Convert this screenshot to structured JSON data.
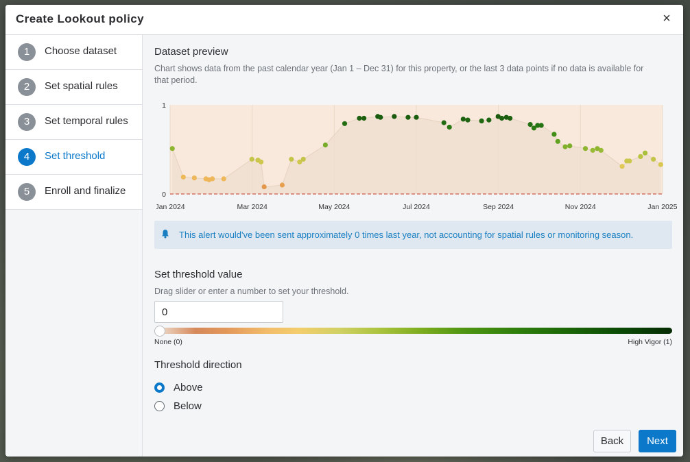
{
  "modal": {
    "title": "Create Lookout policy",
    "close_glyph": "×"
  },
  "steps": [
    {
      "num": "1",
      "label": "Choose dataset"
    },
    {
      "num": "2",
      "label": "Set spatial rules"
    },
    {
      "num": "3",
      "label": "Set temporal rules"
    },
    {
      "num": "4",
      "label": "Set threshold",
      "active": true
    },
    {
      "num": "5",
      "label": "Enroll and finalize"
    }
  ],
  "preview": {
    "title": "Dataset preview",
    "description_line1": "Chart shows data from the past calendar year (Jan 1 – Dec 31) for this property, or the last 3 data points if no data is available for",
    "description_line2": "that period."
  },
  "chart_data": {
    "type": "scatter",
    "y_ticks": [
      "0",
      "1"
    ],
    "ylim": [
      0,
      1
    ],
    "x_ticks": [
      "Jan 2024",
      "Mar 2024",
      "May 2024",
      "Jul 2024",
      "Sep 2024",
      "Nov 2024",
      "Jan 2025"
    ],
    "x_tick_months": [
      0,
      2,
      4,
      6,
      8,
      10,
      12
    ],
    "threshold": 0,
    "points": [
      [
        0.12,
        0.51
      ],
      [
        0.72,
        0.19
      ],
      [
        1.32,
        0.18
      ],
      [
        1.95,
        0.17
      ],
      [
        2.12,
        0.16
      ],
      [
        2.3,
        0.17
      ],
      [
        2.92,
        0.17
      ],
      [
        4.45,
        0.39
      ],
      [
        4.78,
        0.38
      ],
      [
        4.95,
        0.36
      ],
      [
        5.12,
        0.08
      ],
      [
        6.1,
        0.1
      ],
      [
        6.6,
        0.39
      ],
      [
        7.05,
        0.36
      ],
      [
        7.25,
        0.39
      ],
      [
        8.45,
        0.55
      ],
      [
        9.5,
        0.79
      ],
      [
        10.3,
        0.85
      ],
      [
        10.55,
        0.85
      ],
      [
        11.3,
        0.87
      ],
      [
        11.45,
        0.86
      ],
      [
        12.2,
        0.87
      ],
      [
        12.95,
        0.86
      ],
      [
        13.4,
        0.86
      ],
      [
        14.9,
        0.8
      ],
      [
        15.2,
        0.75
      ],
      [
        15.95,
        0.84
      ],
      [
        16.2,
        0.83
      ],
      [
        16.95,
        0.82
      ],
      [
        17.35,
        0.83
      ],
      [
        17.85,
        0.87
      ],
      [
        18.05,
        0.85
      ],
      [
        18.3,
        0.86
      ],
      [
        18.5,
        0.85
      ],
      [
        19.6,
        0.78
      ],
      [
        19.8,
        0.74
      ],
      [
        20.0,
        0.77
      ],
      [
        20.2,
        0.77
      ],
      [
        20.9,
        0.67
      ],
      [
        21.1,
        0.59
      ],
      [
        21.5,
        0.53
      ],
      [
        21.75,
        0.54
      ],
      [
        22.6,
        0.51
      ],
      [
        23.0,
        0.49
      ],
      [
        23.25,
        0.51
      ],
      [
        23.45,
        0.49
      ],
      [
        24.6,
        0.31
      ],
      [
        24.85,
        0.37
      ],
      [
        25.0,
        0.37
      ],
      [
        25.6,
        0.42
      ],
      [
        25.85,
        0.46
      ],
      [
        26.3,
        0.39
      ],
      [
        26.7,
        0.33
      ]
    ]
  },
  "alert": {
    "text": "This alert would've been sent approximately 0 times last year, not accounting for spatial rules or monitoring season."
  },
  "threshold": {
    "title": "Set threshold value",
    "help": "Drag slider or enter a number to set your threshold.",
    "value": "0",
    "slider_value": 0,
    "min_label": "None (0)",
    "max_label": "High Vigor (1)"
  },
  "direction": {
    "title": "Threshold direction",
    "options": [
      {
        "label": "Above",
        "checked": true
      },
      {
        "label": "Below",
        "checked": false
      }
    ]
  },
  "footer": {
    "back_label": "Back",
    "next_label": "Next"
  },
  "colors": {
    "accent": "#0b78c9",
    "chart_bg": "#f8e9dc"
  }
}
